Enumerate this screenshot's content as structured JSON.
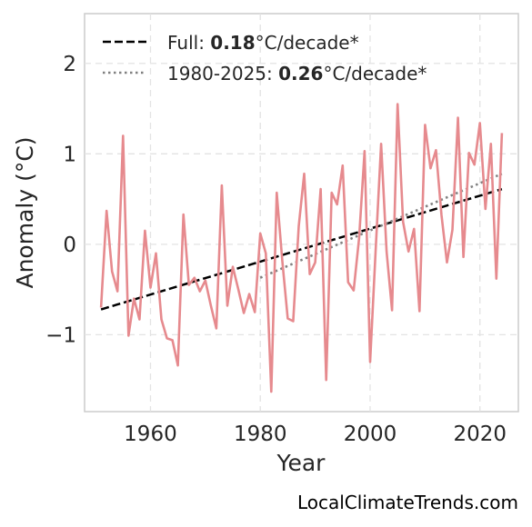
{
  "chart_data": {
    "type": "line",
    "xlabel": "Year",
    "ylabel": "Anomaly (°C)",
    "xlim": [
      1948,
      2027
    ],
    "ylim": [
      -1.85,
      2.55
    ],
    "xticks": [
      1960,
      1980,
      2000,
      2020
    ],
    "yticks": [
      2,
      1,
      0,
      -1
    ],
    "ytick_labels": [
      "2",
      "1",
      "0",
      "−1"
    ],
    "grid": true,
    "legend_position": "top-left",
    "series": [
      {
        "x": [
          1951,
          1952,
          1953,
          1954,
          1955,
          1956,
          1957,
          1958,
          1959,
          1960,
          1961,
          1962,
          1963,
          1964,
          1965,
          1966,
          1967,
          1968,
          1969,
          1970,
          1971,
          1972,
          1973,
          1974,
          1975,
          1976,
          1977,
          1978,
          1979,
          1980,
          1981,
          1982,
          1983,
          1984,
          1985,
          1986,
          1987,
          1988,
          1989,
          1990,
          1991,
          1992,
          1993,
          1994,
          1995,
          1996,
          1997,
          1998,
          1999,
          2000,
          2001,
          2002,
          2003,
          2004,
          2005,
          2006,
          2007,
          2008,
          2009,
          2010,
          2011,
          2012,
          2013,
          2014,
          2015,
          2016,
          2017,
          2018,
          2019,
          2020,
          2021,
          2022,
          2023,
          2024
        ],
        "values": [
          -0.7,
          0.37,
          -0.3,
          -0.52,
          1.2,
          -1.01,
          -0.6,
          -0.83,
          0.15,
          -0.48,
          -0.1,
          -0.83,
          -1.04,
          -1.06,
          -1.34,
          0.33,
          -0.45,
          -0.37,
          -0.52,
          -0.4,
          -0.68,
          -0.93,
          0.65,
          -0.68,
          -0.25,
          -0.5,
          -0.76,
          -0.55,
          -0.75,
          0.12,
          -0.1,
          -1.63,
          0.57,
          -0.18,
          -0.82,
          -0.85,
          0.2,
          0.78,
          -0.33,
          -0.2,
          0.61,
          -1.5,
          0.57,
          0.44,
          0.87,
          -0.42,
          -0.51,
          0.07,
          1.03,
          -1.3,
          -0.08,
          1.11,
          -0.08,
          -0.73,
          1.55,
          0.25,
          -0.08,
          0.17,
          -0.74,
          1.32,
          0.84,
          1.04,
          0.32,
          -0.2,
          0.16,
          1.4,
          -0.14,
          1.01,
          0.88,
          1.34,
          0.39,
          1.11,
          -0.38,
          1.23
        ],
        "color": "#e68a8e"
      }
    ],
    "trend_lines": [
      {
        "x": [
          1951,
          2024
        ],
        "y": [
          -0.72,
          0.61
        ],
        "style": "dashed",
        "color": "#000000"
      },
      {
        "x": [
          1980,
          2024
        ],
        "y": [
          -0.37,
          0.78
        ],
        "style": "dotted",
        "color": "#808080"
      }
    ],
    "legend": [
      {
        "prefix": "Full: ",
        "value": "0.18",
        "suffix": "°C/decade*",
        "style": "dashed",
        "color": "#000000"
      },
      {
        "prefix": "1980-2025: ",
        "value": "0.26",
        "suffix": "°C/decade*",
        "style": "dotted",
        "color": "#808080"
      }
    ]
  },
  "credit": "LocalClimateTrends.com"
}
